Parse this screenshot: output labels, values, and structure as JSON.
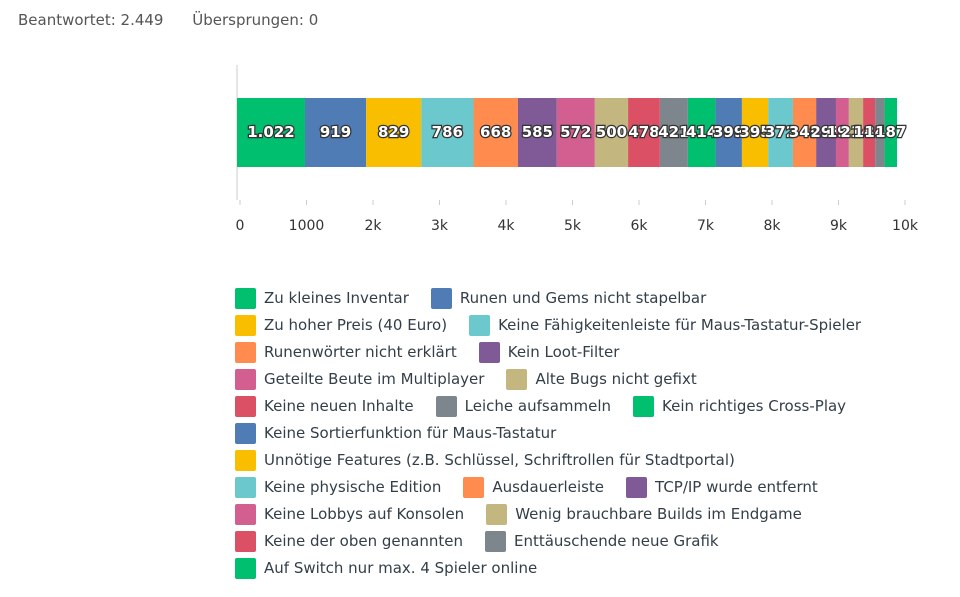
{
  "header": {
    "answered": "Beantwortet: 2.449",
    "skipped": "Übersprungen: 0"
  },
  "chart_data": {
    "type": "stacked_bar",
    "xlim": [
      0,
      10000
    ],
    "xticks": [
      0,
      1000,
      {
        "value": 2000,
        "label": "2k"
      },
      {
        "value": 3000,
        "label": "3k"
      },
      {
        "value": 4000,
        "label": "4k"
      },
      {
        "value": 5000,
        "label": "5k"
      },
      {
        "value": 6000,
        "label": "6k"
      },
      {
        "value": 7000,
        "label": "7k"
      },
      {
        "value": 8000,
        "label": "8k"
      },
      {
        "value": 9000,
        "label": "9k"
      },
      {
        "value": 10000,
        "label": "10k"
      }
    ],
    "series": [
      {
        "name": "Zu kleines Inventar",
        "color": "#00bf6f",
        "values": [
          1022
        ],
        "value_labels": [
          "1.022"
        ]
      },
      {
        "name": "Runen und Gems nicht stapelbar",
        "color": "#507cb6",
        "values": [
          919
        ]
      },
      {
        "name": "Zu hoher Preis (40 Euro)",
        "color": "#f9be00",
        "values": [
          829
        ]
      },
      {
        "name": "Keine Fähigkeitenleiste für Maus-Tastatur-Spieler",
        "color": "#6bc8cd",
        "values": [
          786
        ]
      },
      {
        "name": "Runenwörter nicht erklärt",
        "color": "#ff8b4f",
        "values": [
          668
        ]
      },
      {
        "name": "Kein Loot-Filter",
        "color": "#7f5a96",
        "values": [
          585
        ]
      },
      {
        "name": "Geteilte Beute im Multiplayer",
        "color": "#d25f90",
        "values": [
          572
        ]
      },
      {
        "name": "Alte Bugs nicht gefixt",
        "color": "#c4b67f",
        "values": [
          500
        ]
      },
      {
        "name": "Keine neuen Inhalte",
        "color": "#dc5065",
        "values": [
          478
        ]
      },
      {
        "name": "Leiche aufsammeln",
        "color": "#7d868c",
        "values": [
          421
        ]
      },
      {
        "name": "Kein richtiges Cross-Play",
        "color": "#00bf6f",
        "values": [
          414
        ]
      },
      {
        "name": "Keine Sortierfunktion für Maus-Tastatur",
        "color": "#507cb6",
        "values": [
          399
        ]
      },
      {
        "name": "Unnötige Features (z.B. Schlüssel, Schriftrollen für Stadtportal)",
        "color": "#f9be00",
        "values": [
          395
        ]
      },
      {
        "name": "Keine physische Edition",
        "color": "#6bc8cd",
        "values": [
          372
        ]
      },
      {
        "name": "Ausdauerleiste",
        "color": "#ff8b4f",
        "values": [
          349
        ]
      },
      {
        "name": "TCP/IP wurde entfernt",
        "color": "#7f5a96",
        "values": [
          298
        ]
      },
      {
        "name": "Keine Lobbys auf Konsolen",
        "color": "#d25f90",
        "values": [
          194
        ]
      },
      {
        "name": "Wenig brauchbare Builds im Endgame",
        "color": "#c4b67f",
        "values": [
          214
        ]
      },
      {
        "name": "Keine der oben genannten",
        "color": "#dc5065",
        "values": [
          181
        ]
      },
      {
        "name": "Enttäuschende neue Grafik",
        "color": "#7d868c",
        "values": [
          142
        ]
      },
      {
        "name": "Auf Switch nur max. 4 Spieler online",
        "color": "#00bf6f",
        "values": [
          187
        ]
      }
    ]
  }
}
